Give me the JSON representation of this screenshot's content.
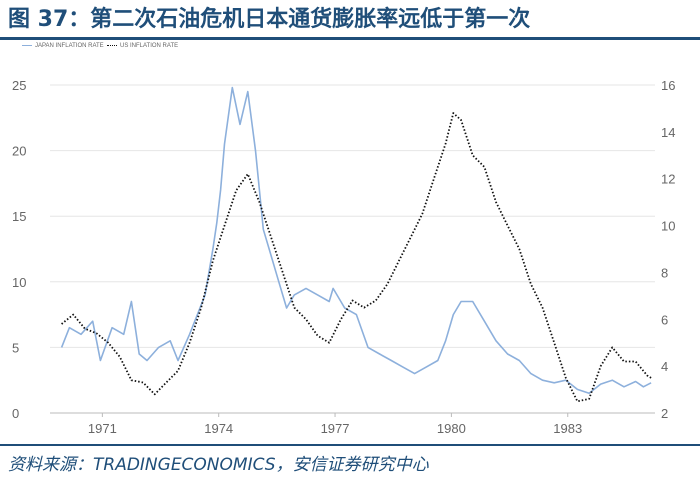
{
  "header": {
    "title": "图 37：第二次石油危机日本通货膨胀率远低于第一次"
  },
  "footer": {
    "source": "资料来源：TRADINGECONOMICS，安信证券研究中心"
  },
  "colors": {
    "japan": "#8db0dc",
    "us": "#111111",
    "title": "#1f4e79",
    "axis_text": "#666666"
  },
  "chart_data": {
    "type": "line",
    "title": "",
    "legend": {
      "position": "top-left",
      "entries": [
        "JAPAN INFLATION RATE",
        "US INFLATION RATE"
      ]
    },
    "x_ticks": [
      "1971",
      "1974",
      "1977",
      "1980",
      "1983"
    ],
    "y_left": {
      "ticks": [
        "0",
        "5",
        "10",
        "15",
        "20",
        "25"
      ],
      "range": [
        0,
        25
      ]
    },
    "y_right": {
      "ticks": [
        "2",
        "4",
        "6",
        "8",
        "10",
        "12",
        "14",
        "16"
      ],
      "range": [
        2,
        16
      ]
    },
    "xlim": [
      1969.7,
      1985.3
    ],
    "grid": true,
    "series": [
      {
        "name": "JAPAN INFLATION RATE",
        "axis": "left",
        "style": "solid",
        "x": [
          1970.0,
          1970.2,
          1970.5,
          1970.8,
          1971.0,
          1971.3,
          1971.6,
          1971.8,
          1972.0,
          1972.2,
          1972.5,
          1972.8,
          1973.0,
          1973.3,
          1973.5,
          1973.7,
          1973.9,
          1974.0,
          1974.1,
          1974.2,
          1974.4,
          1974.6,
          1974.8,
          1975.0,
          1975.2,
          1975.4,
          1975.6,
          1975.8,
          1976.0,
          1976.3,
          1976.6,
          1976.9,
          1977.0,
          1977.3,
          1977.6,
          1977.9,
          1978.2,
          1978.5,
          1978.8,
          1979.1,
          1979.4,
          1979.7,
          1979.9,
          1980.1,
          1980.3,
          1980.6,
          1980.9,
          1981.2,
          1981.5,
          1981.8,
          1982.1,
          1982.4,
          1982.7,
          1983.0,
          1983.3,
          1983.6,
          1983.9,
          1984.2,
          1984.5,
          1984.8,
          1985.0,
          1985.2
        ],
        "y": [
          5.0,
          6.5,
          6.0,
          7.0,
          4.0,
          6.5,
          6.0,
          8.5,
          4.5,
          4.0,
          5.0,
          5.5,
          4.0,
          6.0,
          7.5,
          9.0,
          12.5,
          14.5,
          17.0,
          20.5,
          24.8,
          22.0,
          24.5,
          20.0,
          14.0,
          12.0,
          10.0,
          8.0,
          9.0,
          9.5,
          9.0,
          8.5,
          9.5,
          8.0,
          7.5,
          5.0,
          4.5,
          4.0,
          3.5,
          3.0,
          3.5,
          4.0,
          5.5,
          7.5,
          8.5,
          8.5,
          7.0,
          5.5,
          4.5,
          4.0,
          3.0,
          2.5,
          2.3,
          2.5,
          1.8,
          1.5,
          2.2,
          2.5,
          2.0,
          2.4,
          2.0,
          2.3
        ]
      },
      {
        "name": "US INFLATION RATE",
        "axis": "right",
        "style": "dotted",
        "x": [
          1970.0,
          1970.3,
          1970.6,
          1970.9,
          1971.2,
          1971.5,
          1971.8,
          1972.1,
          1972.4,
          1972.7,
          1973.0,
          1973.3,
          1973.6,
          1973.9,
          1974.2,
          1974.5,
          1974.8,
          1975.1,
          1975.4,
          1975.7,
          1976.0,
          1976.3,
          1976.6,
          1976.9,
          1977.2,
          1977.5,
          1977.8,
          1978.1,
          1978.4,
          1978.7,
          1979.0,
          1979.3,
          1979.6,
          1979.9,
          1980.1,
          1980.3,
          1980.6,
          1980.9,
          1981.2,
          1981.5,
          1981.8,
          1982.1,
          1982.4,
          1982.7,
          1983.0,
          1983.3,
          1983.6,
          1983.9,
          1984.2,
          1984.5,
          1984.8,
          1985.1,
          1985.2
        ],
        "y": [
          5.8,
          6.2,
          5.6,
          5.4,
          5.0,
          4.4,
          3.4,
          3.3,
          2.8,
          3.3,
          3.8,
          5.0,
          6.5,
          8.5,
          10.0,
          11.5,
          12.2,
          11.0,
          9.5,
          8.0,
          6.5,
          6.0,
          5.3,
          5.0,
          6.0,
          6.8,
          6.5,
          6.8,
          7.5,
          8.5,
          9.5,
          10.5,
          12.0,
          13.5,
          14.8,
          14.5,
          13.0,
          12.5,
          11.0,
          10.0,
          9.0,
          7.5,
          6.5,
          5.0,
          3.5,
          2.5,
          2.6,
          4.0,
          4.8,
          4.2,
          4.2,
          3.6,
          3.5
        ]
      }
    ]
  }
}
